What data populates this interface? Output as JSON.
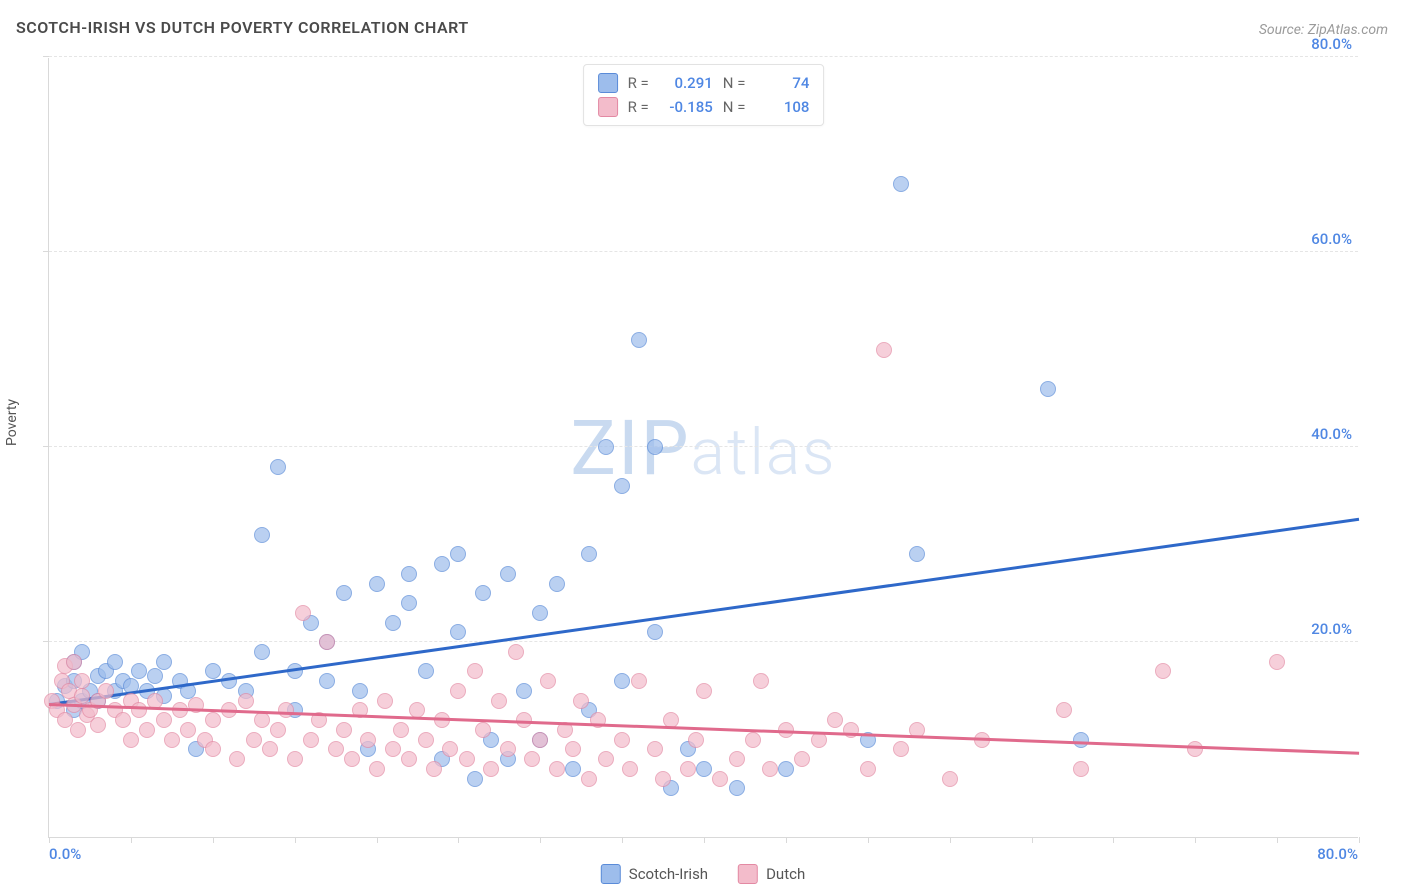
{
  "title": "SCOTCH-IRISH VS DUTCH POVERTY CORRELATION CHART",
  "source": "Source: ZipAtlas.com",
  "ylabel": "Poverty",
  "watermark_zip": "ZIP",
  "watermark_atlas": "atlas",
  "chart": {
    "type": "scatter",
    "xlim": [
      0,
      80
    ],
    "ylim": [
      0,
      80
    ],
    "x_tick_interval": 5,
    "y_gridlines": [
      20,
      40,
      60,
      80
    ],
    "x_axis_label_min": "0.0%",
    "x_axis_label_max": "80.0%",
    "y_tick_labels": {
      "20": "20.0%",
      "40": "40.0%",
      "60": "60.0%",
      "80": "80.0%"
    },
    "background_color": "#ffffff",
    "grid_color": "#e5e5e5",
    "axis_color": "#d9d9d9",
    "axis_label_color_x_min": "#4f87e3",
    "axis_label_color_x_max": "#4f87e3",
    "y_tick_label_color": "#4f87e3",
    "point_radius": 8,
    "point_border_width": 1.5,
    "point_fill_opacity": 0.35,
    "trend_line_width": 2.5
  },
  "series": [
    {
      "name": "Scotch-Irish",
      "fill_color": "#9dbdec",
      "border_color": "#5a8bd8",
      "trend_color": "#2e68c9",
      "R": "0.291",
      "N": "74",
      "trend": {
        "x1": 0,
        "y1": 13.5,
        "x2": 80,
        "y2": 32.5
      },
      "points": [
        {
          "x": 0.5,
          "y": 14
        },
        {
          "x": 1,
          "y": 15.5
        },
        {
          "x": 1.5,
          "y": 13
        },
        {
          "x": 1.5,
          "y": 18
        },
        {
          "x": 1.5,
          "y": 16
        },
        {
          "x": 2,
          "y": 14
        },
        {
          "x": 2,
          "y": 19
        },
        {
          "x": 2.5,
          "y": 15
        },
        {
          "x": 3,
          "y": 16.5
        },
        {
          "x": 3,
          "y": 14
        },
        {
          "x": 3.5,
          "y": 17
        },
        {
          "x": 4,
          "y": 15
        },
        {
          "x": 4,
          "y": 18
        },
        {
          "x": 4.5,
          "y": 16
        },
        {
          "x": 5,
          "y": 15.5
        },
        {
          "x": 5.5,
          "y": 17
        },
        {
          "x": 6,
          "y": 15
        },
        {
          "x": 6.5,
          "y": 16.5
        },
        {
          "x": 7,
          "y": 14.5
        },
        {
          "x": 7,
          "y": 18
        },
        {
          "x": 8,
          "y": 16
        },
        {
          "x": 8.5,
          "y": 15
        },
        {
          "x": 9,
          "y": 9
        },
        {
          "x": 10,
          "y": 17
        },
        {
          "x": 11,
          "y": 16
        },
        {
          "x": 12,
          "y": 15
        },
        {
          "x": 13,
          "y": 31
        },
        {
          "x": 13,
          "y": 19
        },
        {
          "x": 14,
          "y": 38
        },
        {
          "x": 15,
          "y": 17
        },
        {
          "x": 15,
          "y": 13
        },
        {
          "x": 16,
          "y": 22
        },
        {
          "x": 17,
          "y": 20
        },
        {
          "x": 17,
          "y": 16
        },
        {
          "x": 18,
          "y": 25
        },
        {
          "x": 19,
          "y": 15
        },
        {
          "x": 19.5,
          "y": 9
        },
        {
          "x": 20,
          "y": 26
        },
        {
          "x": 21,
          "y": 22
        },
        {
          "x": 22,
          "y": 27
        },
        {
          "x": 22,
          "y": 24
        },
        {
          "x": 23,
          "y": 17
        },
        {
          "x": 24,
          "y": 28
        },
        {
          "x": 24,
          "y": 8
        },
        {
          "x": 25,
          "y": 21
        },
        {
          "x": 25,
          "y": 29
        },
        {
          "x": 26,
          "y": 6
        },
        {
          "x": 26.5,
          "y": 25
        },
        {
          "x": 27,
          "y": 10
        },
        {
          "x": 28,
          "y": 8
        },
        {
          "x": 28,
          "y": 27
        },
        {
          "x": 29,
          "y": 15
        },
        {
          "x": 30,
          "y": 10
        },
        {
          "x": 30,
          "y": 23
        },
        {
          "x": 31,
          "y": 26
        },
        {
          "x": 32,
          "y": 7
        },
        {
          "x": 33,
          "y": 29
        },
        {
          "x": 33,
          "y": 13
        },
        {
          "x": 34,
          "y": 40
        },
        {
          "x": 35,
          "y": 36
        },
        {
          "x": 35,
          "y": 16
        },
        {
          "x": 36,
          "y": 51
        },
        {
          "x": 37,
          "y": 40
        },
        {
          "x": 37,
          "y": 21
        },
        {
          "x": 38,
          "y": 5
        },
        {
          "x": 39,
          "y": 9
        },
        {
          "x": 40,
          "y": 7
        },
        {
          "x": 42,
          "y": 5
        },
        {
          "x": 45,
          "y": 7
        },
        {
          "x": 50,
          "y": 10
        },
        {
          "x": 52,
          "y": 67
        },
        {
          "x": 53,
          "y": 29
        },
        {
          "x": 61,
          "y": 46
        },
        {
          "x": 63,
          "y": 10
        }
      ]
    },
    {
      "name": "Dutch",
      "fill_color": "#f3bccb",
      "border_color": "#e389a3",
      "trend_color": "#e06a8c",
      "R": "-0.185",
      "N": "108",
      "trend": {
        "x1": 0,
        "y1": 13.5,
        "x2": 80,
        "y2": 8.5
      },
      "points": [
        {
          "x": 0.2,
          "y": 14
        },
        {
          "x": 0.5,
          "y": 13
        },
        {
          "x": 0.8,
          "y": 16
        },
        {
          "x": 1,
          "y": 17.5
        },
        {
          "x": 1,
          "y": 12
        },
        {
          "x": 1.2,
          "y": 15
        },
        {
          "x": 1.5,
          "y": 18
        },
        {
          "x": 1.5,
          "y": 13.5
        },
        {
          "x": 1.8,
          "y": 11
        },
        {
          "x": 2,
          "y": 14.5
        },
        {
          "x": 2,
          "y": 16
        },
        {
          "x": 2.3,
          "y": 12.5
        },
        {
          "x": 2.5,
          "y": 13
        },
        {
          "x": 3,
          "y": 14
        },
        {
          "x": 3,
          "y": 11.5
        },
        {
          "x": 3.5,
          "y": 15
        },
        {
          "x": 4,
          "y": 13
        },
        {
          "x": 4.5,
          "y": 12
        },
        {
          "x": 5,
          "y": 14
        },
        {
          "x": 5,
          "y": 10
        },
        {
          "x": 5.5,
          "y": 13
        },
        {
          "x": 6,
          "y": 11
        },
        {
          "x": 6.5,
          "y": 14
        },
        {
          "x": 7,
          "y": 12
        },
        {
          "x": 7.5,
          "y": 10
        },
        {
          "x": 8,
          "y": 13
        },
        {
          "x": 8.5,
          "y": 11
        },
        {
          "x": 9,
          "y": 13.5
        },
        {
          "x": 9.5,
          "y": 10
        },
        {
          "x": 10,
          "y": 12
        },
        {
          "x": 10,
          "y": 9
        },
        {
          "x": 11,
          "y": 13
        },
        {
          "x": 11.5,
          "y": 8
        },
        {
          "x": 12,
          "y": 14
        },
        {
          "x": 12.5,
          "y": 10
        },
        {
          "x": 13,
          "y": 12
        },
        {
          "x": 13.5,
          "y": 9
        },
        {
          "x": 14,
          "y": 11
        },
        {
          "x": 14.5,
          "y": 13
        },
        {
          "x": 15,
          "y": 8
        },
        {
          "x": 15.5,
          "y": 23
        },
        {
          "x": 16,
          "y": 10
        },
        {
          "x": 16.5,
          "y": 12
        },
        {
          "x": 17,
          "y": 20
        },
        {
          "x": 17.5,
          "y": 9
        },
        {
          "x": 18,
          "y": 11
        },
        {
          "x": 18.5,
          "y": 8
        },
        {
          "x": 19,
          "y": 13
        },
        {
          "x": 19.5,
          "y": 10
        },
        {
          "x": 20,
          "y": 7
        },
        {
          "x": 20.5,
          "y": 14
        },
        {
          "x": 21,
          "y": 9
        },
        {
          "x": 21.5,
          "y": 11
        },
        {
          "x": 22,
          "y": 8
        },
        {
          "x": 22.5,
          "y": 13
        },
        {
          "x": 23,
          "y": 10
        },
        {
          "x": 23.5,
          "y": 7
        },
        {
          "x": 24,
          "y": 12
        },
        {
          "x": 24.5,
          "y": 9
        },
        {
          "x": 25,
          "y": 15
        },
        {
          "x": 25.5,
          "y": 8
        },
        {
          "x": 26,
          "y": 17
        },
        {
          "x": 26.5,
          "y": 11
        },
        {
          "x": 27,
          "y": 7
        },
        {
          "x": 27.5,
          "y": 14
        },
        {
          "x": 28,
          "y": 9
        },
        {
          "x": 28.5,
          "y": 19
        },
        {
          "x": 29,
          "y": 12
        },
        {
          "x": 29.5,
          "y": 8
        },
        {
          "x": 30,
          "y": 10
        },
        {
          "x": 30.5,
          "y": 16
        },
        {
          "x": 31,
          "y": 7
        },
        {
          "x": 31.5,
          "y": 11
        },
        {
          "x": 32,
          "y": 9
        },
        {
          "x": 32.5,
          "y": 14
        },
        {
          "x": 33,
          "y": 6
        },
        {
          "x": 33.5,
          "y": 12
        },
        {
          "x": 34,
          "y": 8
        },
        {
          "x": 35,
          "y": 10
        },
        {
          "x": 35.5,
          "y": 7
        },
        {
          "x": 36,
          "y": 16
        },
        {
          "x": 37,
          "y": 9
        },
        {
          "x": 37.5,
          "y": 6
        },
        {
          "x": 38,
          "y": 12
        },
        {
          "x": 39,
          "y": 7
        },
        {
          "x": 39.5,
          "y": 10
        },
        {
          "x": 40,
          "y": 15
        },
        {
          "x": 41,
          "y": 6
        },
        {
          "x": 42,
          "y": 8
        },
        {
          "x": 43,
          "y": 10
        },
        {
          "x": 43.5,
          "y": 16
        },
        {
          "x": 44,
          "y": 7
        },
        {
          "x": 45,
          "y": 11
        },
        {
          "x": 46,
          "y": 8
        },
        {
          "x": 47,
          "y": 10
        },
        {
          "x": 48,
          "y": 12
        },
        {
          "x": 49,
          "y": 11
        },
        {
          "x": 50,
          "y": 7
        },
        {
          "x": 51,
          "y": 50
        },
        {
          "x": 52,
          "y": 9
        },
        {
          "x": 53,
          "y": 11
        },
        {
          "x": 55,
          "y": 6
        },
        {
          "x": 57,
          "y": 10
        },
        {
          "x": 62,
          "y": 13
        },
        {
          "x": 63,
          "y": 7
        },
        {
          "x": 68,
          "y": 17
        },
        {
          "x": 70,
          "y": 9
        },
        {
          "x": 75,
          "y": 18
        }
      ]
    }
  ],
  "legend_top": {
    "r_label": "R =",
    "n_label": "N ="
  },
  "legend_bottom": {
    "items": [
      "Scotch-Irish",
      "Dutch"
    ]
  }
}
